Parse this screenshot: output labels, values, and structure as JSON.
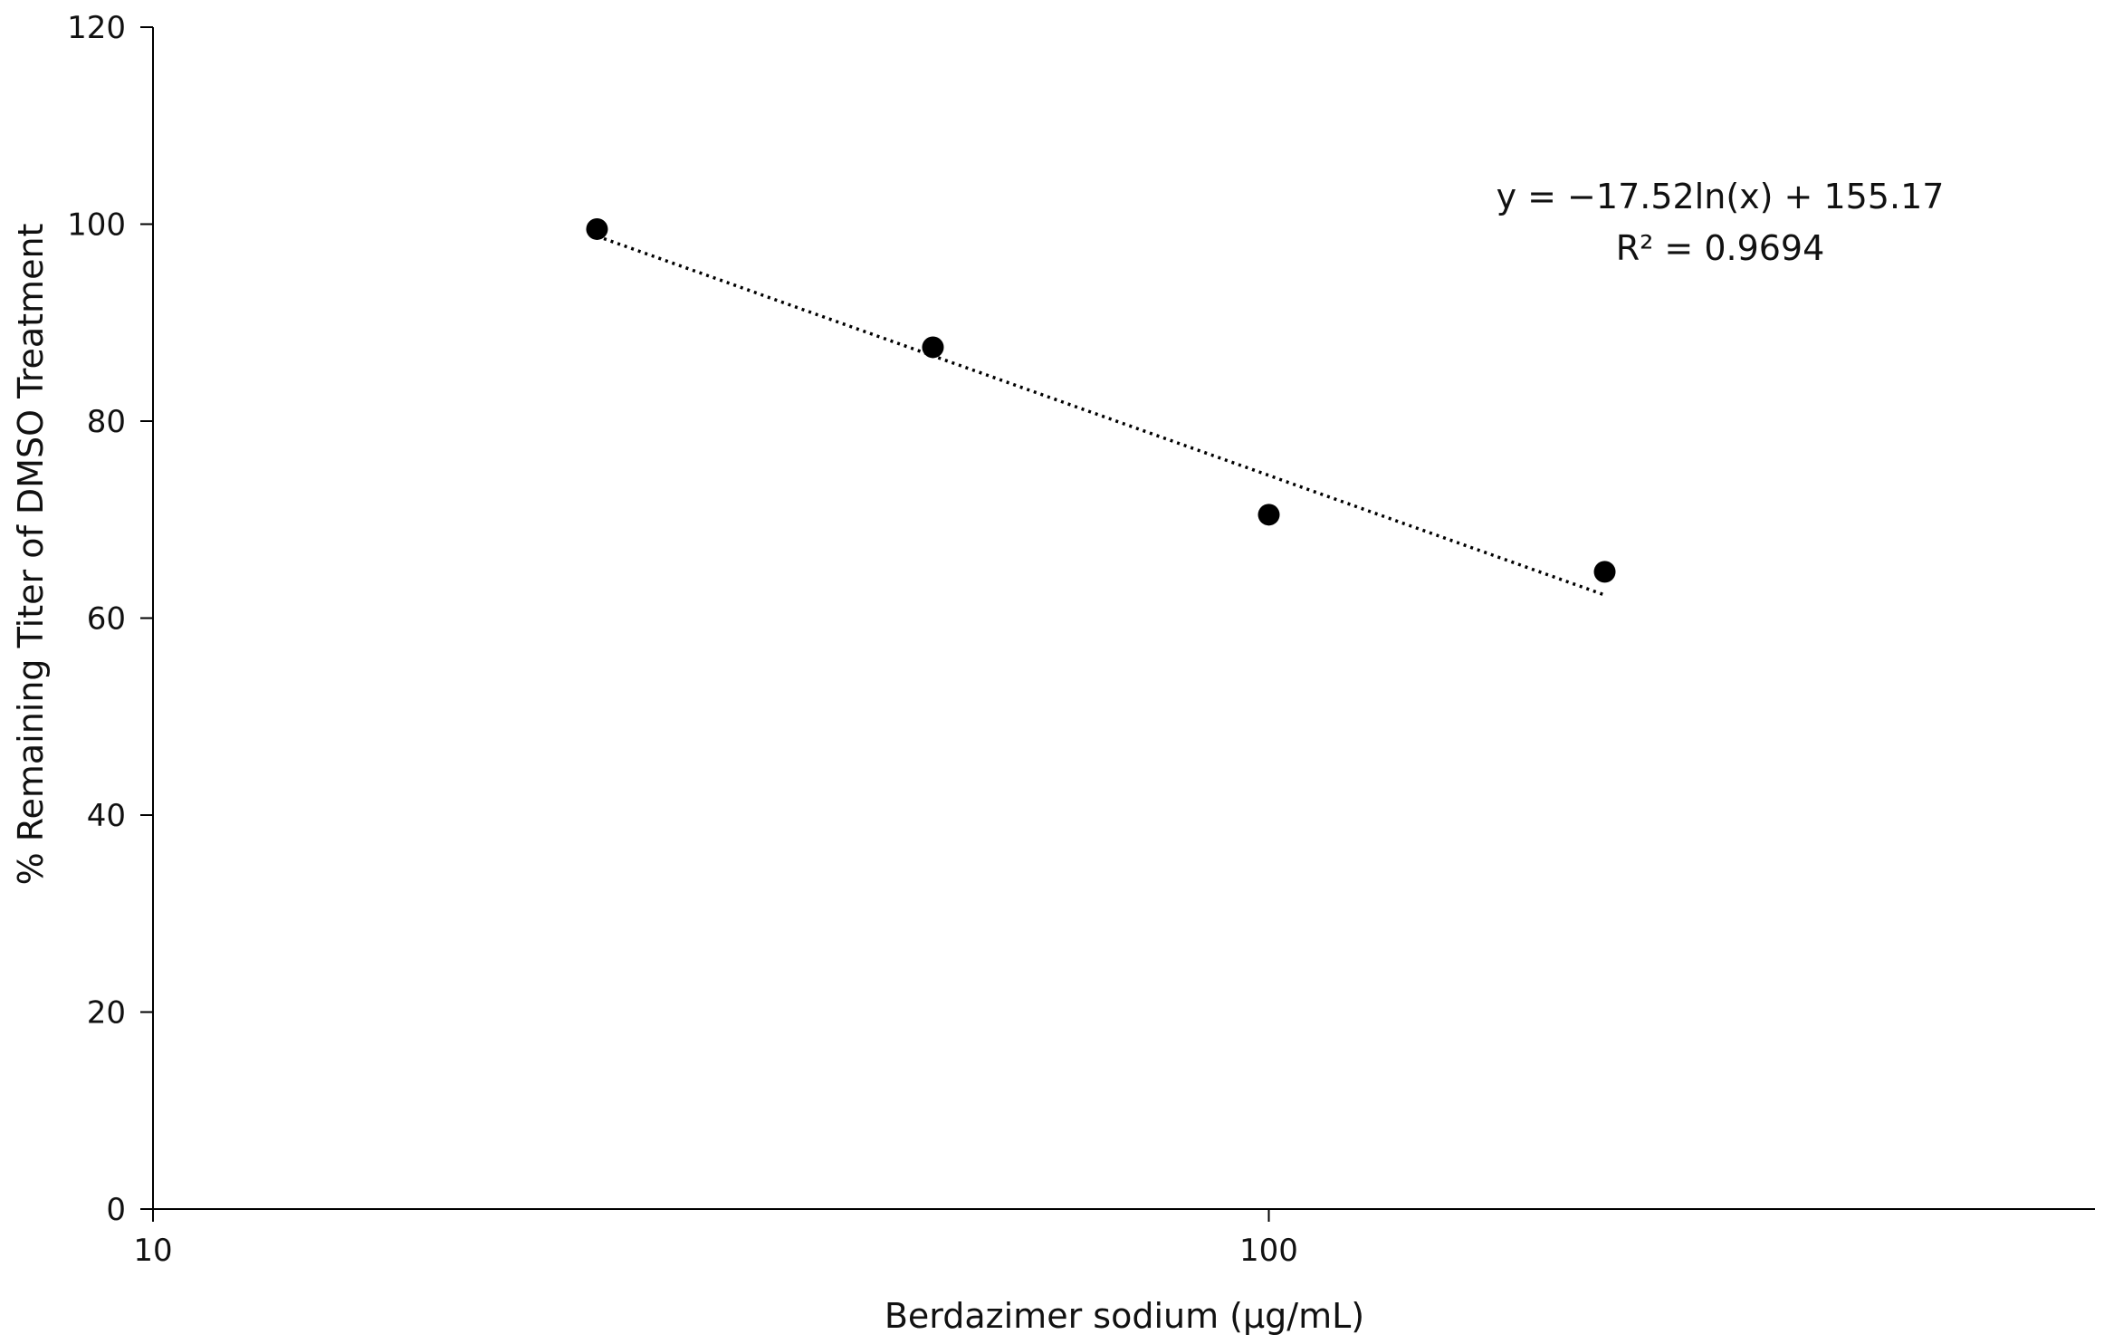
{
  "chart_data": {
    "type": "scatter",
    "x_scale": "log",
    "xlabel": "Berdazimer sodium (μg/mL)",
    "ylabel": "% Remaining Titer of DMSO Treatment",
    "xlim": [
      10,
      550
    ],
    "ylim": [
      0,
      120
    ],
    "x_ticks": [
      {
        "value": 10,
        "label": "10"
      },
      {
        "value": 100,
        "label": "100"
      }
    ],
    "y_ticks": [
      {
        "value": 0,
        "label": "0"
      },
      {
        "value": 20,
        "label": "20"
      },
      {
        "value": 40,
        "label": "40"
      },
      {
        "value": 60,
        "label": "60"
      },
      {
        "value": 80,
        "label": "80"
      },
      {
        "value": 100,
        "label": "100"
      },
      {
        "value": 120,
        "label": "120"
      }
    ],
    "grid": false,
    "legend": false,
    "points": [
      {
        "x": 25,
        "y": 99.5
      },
      {
        "x": 50,
        "y": 87.5
      },
      {
        "x": 100,
        "y": 70.5
      },
      {
        "x": 200,
        "y": 64.7
      }
    ],
    "trendline": {
      "type": "logarithmic",
      "style": "dotted",
      "a": -17.52,
      "b": 155.17,
      "x_range": [
        25,
        200
      ],
      "equation_label": "y = −17.52ln(x) + 155.17",
      "r2_label": "R² = 0.9694"
    },
    "colors": {
      "marker": "#000000",
      "axis": "#000000",
      "text": "#111111"
    }
  }
}
